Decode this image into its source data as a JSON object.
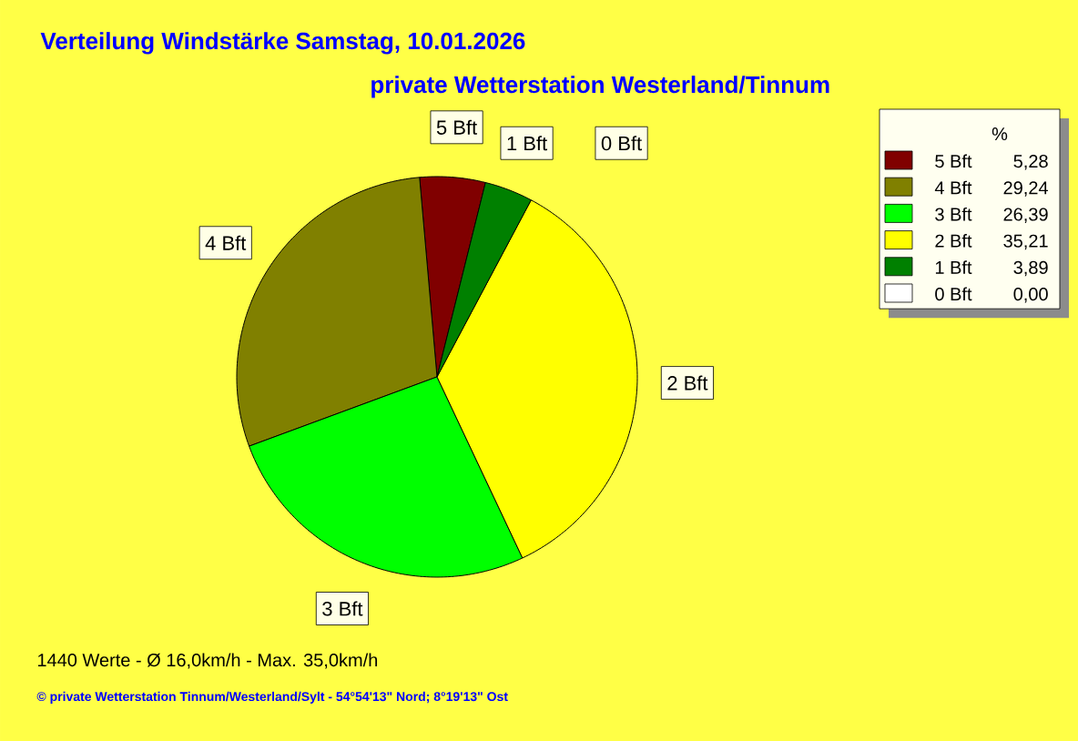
{
  "chart_data": {
    "type": "pie",
    "title": "Verteilung Windstärke  Samstag, 10.01.2026",
    "subtitle": "private Wetterstation Westerland/Tinnum",
    "categories": [
      "5 Bft",
      "4 Bft",
      "3 Bft",
      "2 Bft",
      "1 Bft",
      "0 Bft"
    ],
    "values": [
      5.28,
      29.24,
      26.39,
      35.21,
      3.89,
      0.0
    ],
    "value_labels": [
      "5,28",
      "29,24",
      "26,39",
      "35,21",
      "3,89",
      "0,00"
    ],
    "colors": [
      "#800000",
      "#808000",
      "#00ff00",
      "#ffff00",
      "#008000",
      "#ffffff"
    ],
    "legend": "right",
    "legend_title": "%",
    "annotations": [
      "1440 Werte   -   Ø 16,0km/h  -  Max. 35,0km/h",
      "© private Wetterstation Tinnum/Westerland/Sylt   -   54°54'13\" Nord; 8°19'13\" Ost"
    ]
  }
}
